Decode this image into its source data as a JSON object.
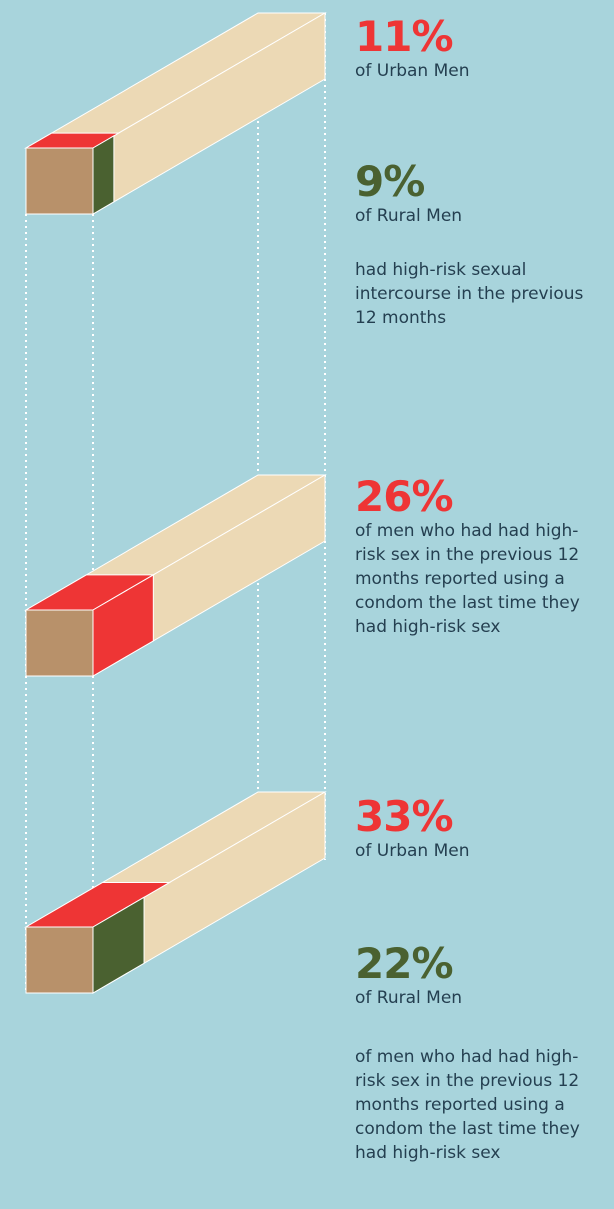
{
  "blocks": [
    {
      "stats": [
        {
          "value": 11,
          "value_label": "11%",
          "label": "of Urban Men",
          "color": "#ee3535"
        },
        {
          "value": 9,
          "value_label": "9%",
          "label": "of Rural Men",
          "color": "#4a6130"
        }
      ],
      "description": "had high-risk sexual intercourse in the previous 12 months"
    },
    {
      "stats": [
        {
          "value": 26,
          "value_label": "26%",
          "label": "of men who had had high-risk sex in the previous 12 months reported using a condom the last time they had high-risk sex",
          "color": "#ee3535"
        }
      ]
    },
    {
      "stats": [
        {
          "value": 33,
          "value_label": "33%",
          "label": "of Urban Men",
          "color": "#ee3535"
        },
        {
          "value": 22,
          "value_label": "22%",
          "label": "of Rural Men",
          "color": "#4a6130"
        }
      ],
      "description": "of men who had had high-risk sex in the previous 12 months reported using a condom the last time they had high-risk sex"
    }
  ]
}
